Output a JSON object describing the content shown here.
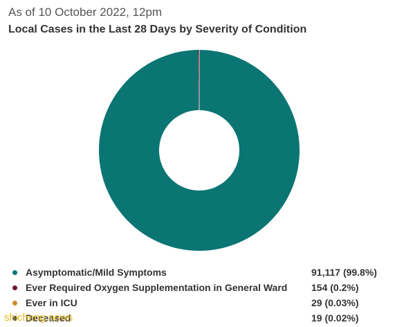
{
  "header": {
    "subtitle": "As of 10 October 2022, 12pm",
    "title": "Local Cases in the Last 28 Days by Severity of Condition"
  },
  "chart_data": {
    "type": "pie",
    "title": "Local Cases in the Last 28 Days by Severity of Condition",
    "subtitle": "As of 10 October 2022, 12pm",
    "donut": true,
    "slices": [
      {
        "label": "Asymptomatic/Mild Symptoms",
        "value": 91117,
        "percent": 99.8,
        "display": "91,117 (99.8%)",
        "color": "#0b7573"
      },
      {
        "label": "Ever Required Oxygen Supplementation in General Ward",
        "value": 154,
        "percent": 0.2,
        "display": "154 (0.2%)",
        "color": "#6b1a2a"
      },
      {
        "label": "Ever in ICU",
        "value": 29,
        "percent": 0.03,
        "display": "29 (0.03%)",
        "color": "#c98a2e"
      },
      {
        "label": "Deceased",
        "value": 19,
        "percent": 0.02,
        "display": "19 (0.02%)",
        "color": "#444444"
      }
    ],
    "legend_position": "bottom"
  },
  "watermark": {
    "text": "shicheng.news"
  }
}
